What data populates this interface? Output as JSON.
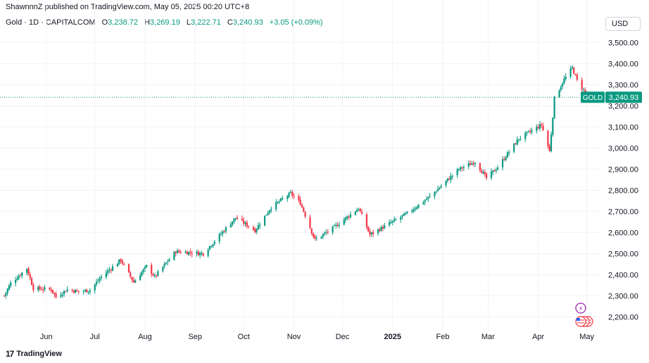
{
  "header": {
    "publisher": "ShawnnnZ published on TradingView.com, May 05, 2025 00:20 UTC+8"
  },
  "symbol": {
    "name": "Gold · 1D · CAPITALCOM",
    "open_label": "O",
    "open": "3,238.72",
    "high_label": "H",
    "high": "3,269.19",
    "low_label": "L",
    "low": "3,222.71",
    "close_label": "C",
    "close": "3,240.93",
    "change": "+3.05 (+0.09%)"
  },
  "currency": "USD",
  "last_price_tag": {
    "label": "GOLD",
    "value": "3,240.93"
  },
  "branding": {
    "name": "TradingView"
  },
  "colors": {
    "up": "#089981",
    "down": "#f23645",
    "grid": "#f0f3fa",
    "text": "#131722",
    "lastline": "#089981"
  },
  "event_icons": [
    "lightning-event-icon",
    "us-flag-event-icon"
  ],
  "chart_data": {
    "type": "candlestick",
    "xlim": [
      "2024-05-06",
      "2025-05-09"
    ],
    "ylim": [
      2135,
      3535
    ],
    "y_ticks": [
      2200,
      2300,
      2400,
      2500,
      2600,
      2700,
      2800,
      2900,
      3000,
      3100,
      3200,
      3300,
      3400,
      3500
    ],
    "y_tick_labels": [
      "2,200.00",
      "2,300.00",
      "2,400.00",
      "2,500.00",
      "2,600.00",
      "2,700.00",
      "2,800.00",
      "2,900.00",
      "3,000.00",
      "3,100.00",
      "3,200.00",
      "3,300.00",
      "3,400.00",
      "3,500.00"
    ],
    "x_ticks": [
      {
        "label": "Jun",
        "date": "2024-06-01"
      },
      {
        "label": "Jul",
        "date": "2024-07-01"
      },
      {
        "label": "Aug",
        "date": "2024-08-01"
      },
      {
        "label": "Sep",
        "date": "2024-09-01"
      },
      {
        "label": "Oct",
        "date": "2024-10-01"
      },
      {
        "label": "Nov",
        "date": "2024-11-01"
      },
      {
        "label": "Dec",
        "date": "2024-12-01"
      },
      {
        "label": "2025",
        "date": "2025-01-01",
        "bold": true
      },
      {
        "label": "Feb",
        "date": "2025-02-01"
      },
      {
        "label": "Mar",
        "date": "2025-03-01"
      },
      {
        "label": "Apr",
        "date": "2025-04-01"
      },
      {
        "label": "May",
        "date": "2025-05-01"
      }
    ],
    "last_price": 3240.93,
    "grid": true,
    "closes": [
      {
        "date": "2024-05-06",
        "close": 2300
      },
      {
        "date": "2024-05-10",
        "close": 2360
      },
      {
        "date": "2024-05-20",
        "close": 2430
      },
      {
        "date": "2024-05-24",
        "close": 2335
      },
      {
        "date": "2024-06-04",
        "close": 2330
      },
      {
        "date": "2024-06-07",
        "close": 2295
      },
      {
        "date": "2024-06-14",
        "close": 2330
      },
      {
        "date": "2024-06-21",
        "close": 2320
      },
      {
        "date": "2024-06-28",
        "close": 2327
      },
      {
        "date": "2024-07-05",
        "close": 2390
      },
      {
        "date": "2024-07-17",
        "close": 2470
      },
      {
        "date": "2024-07-25",
        "close": 2365
      },
      {
        "date": "2024-08-02",
        "close": 2440
      },
      {
        "date": "2024-08-07",
        "close": 2390
      },
      {
        "date": "2024-08-20",
        "close": 2510
      },
      {
        "date": "2024-09-06",
        "close": 2500
      },
      {
        "date": "2024-09-20",
        "close": 2620
      },
      {
        "date": "2024-09-26",
        "close": 2670
      },
      {
        "date": "2024-10-08",
        "close": 2610
      },
      {
        "date": "2024-10-18",
        "close": 2720
      },
      {
        "date": "2024-10-30",
        "close": 2785
      },
      {
        "date": "2024-11-05",
        "close": 2740
      },
      {
        "date": "2024-11-14",
        "close": 2565
      },
      {
        "date": "2024-11-25",
        "close": 2620
      },
      {
        "date": "2024-12-11",
        "close": 2715
      },
      {
        "date": "2024-12-18",
        "close": 2590
      },
      {
        "date": "2025-01-10",
        "close": 2690
      },
      {
        "date": "2025-01-24",
        "close": 2770
      },
      {
        "date": "2025-02-11",
        "close": 2900
      },
      {
        "date": "2025-02-21",
        "close": 2935
      },
      {
        "date": "2025-02-28",
        "close": 2858
      },
      {
        "date": "2025-03-07",
        "close": 2910
      },
      {
        "date": "2025-03-20",
        "close": 3045
      },
      {
        "date": "2025-04-03",
        "close": 3110
      },
      {
        "date": "2025-04-08",
        "close": 2985
      },
      {
        "date": "2025-04-11",
        "close": 3235
      },
      {
        "date": "2025-04-17",
        "close": 3325
      },
      {
        "date": "2025-04-22",
        "close": 3380
      },
      {
        "date": "2025-04-25",
        "close": 3320
      },
      {
        "date": "2025-05-02",
        "close": 3240
      }
    ]
  }
}
